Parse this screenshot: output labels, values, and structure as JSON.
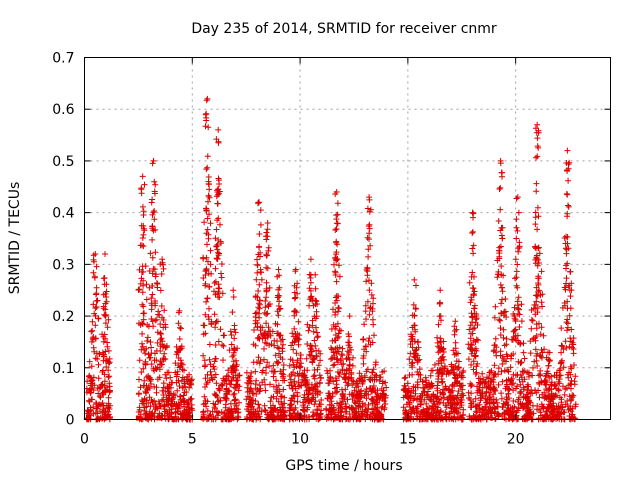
{
  "chart_data": {
    "type": "scatter",
    "title": "Day 235 of 2014, SRMTID for receiver cnmr",
    "xlabel": "GPS time / hours",
    "ylabel": "SRMTID / TECUs",
    "xlim": [
      0,
      24.4
    ],
    "ylim": [
      0,
      0.7
    ],
    "xticks": [
      0,
      5,
      10,
      15,
      20
    ],
    "xtick_labels": [
      "0",
      "5",
      "10",
      "15",
      "20"
    ],
    "yticks": [
      0,
      0.1,
      0.2,
      0.3,
      0.4,
      0.5,
      0.6,
      0.7
    ],
    "ytick_labels": [
      "0",
      "0.1",
      "0.2",
      "0.3",
      "0.4",
      "0.5",
      "0.6",
      "0.7"
    ],
    "grid": true,
    "marker_color": "#dd0000",
    "series": [
      {
        "name": "SRMTID",
        "marker": "plus",
        "clusters": [
          {
            "x": [
              0.1,
              1.2
            ],
            "peaks": [
              [
                0.5,
                0.32
              ],
              [
                0.95,
                0.32
              ]
            ]
          },
          {
            "x": [
              2.5,
              5.0
            ],
            "peaks": [
              [
                2.7,
                0.47
              ],
              [
                3.2,
                0.5
              ],
              [
                3.6,
                0.31
              ],
              [
                4.4,
                0.21
              ]
            ]
          },
          {
            "x": [
              5.5,
              7.2
            ],
            "peaks": [
              [
                5.7,
                0.62
              ],
              [
                6.2,
                0.56
              ],
              [
                6.9,
                0.25
              ]
            ]
          },
          {
            "x": [
              7.5,
              9.3
            ],
            "peaks": [
              [
                8.1,
                0.42
              ],
              [
                8.5,
                0.38
              ],
              [
                9.0,
                0.29
              ]
            ]
          },
          {
            "x": [
              9.5,
              11.0
            ],
            "peaks": [
              [
                9.8,
                0.29
              ],
              [
                10.5,
                0.31
              ],
              [
                10.7,
                0.28
              ]
            ]
          },
          {
            "x": [
              11.2,
              14.0
            ],
            "peaks": [
              [
                11.7,
                0.44
              ],
              [
                12.3,
                0.2
              ],
              [
                13.2,
                0.43
              ]
            ]
          },
          {
            "x": [
              14.8,
              17.6
            ],
            "peaks": [
              [
                15.3,
                0.27
              ],
              [
                16.5,
                0.25
              ],
              [
                17.2,
                0.19
              ]
            ]
          },
          {
            "x": [
              17.8,
              20.6
            ],
            "peaks": [
              [
                18.0,
                0.4
              ],
              [
                19.3,
                0.5
              ],
              [
                20.1,
                0.43
              ]
            ]
          },
          {
            "x": [
              20.5,
              22.8
            ],
            "peaks": [
              [
                21.0,
                0.57
              ],
              [
                21.5,
                0.13
              ],
              [
                22.4,
                0.52
              ]
            ]
          }
        ],
        "zero_points": [
          0.18,
          2.5,
          2.95,
          3.45,
          5.5,
          9.15,
          11.8,
          15.05,
          18.2,
          19.8,
          20.55
        ]
      }
    ]
  }
}
